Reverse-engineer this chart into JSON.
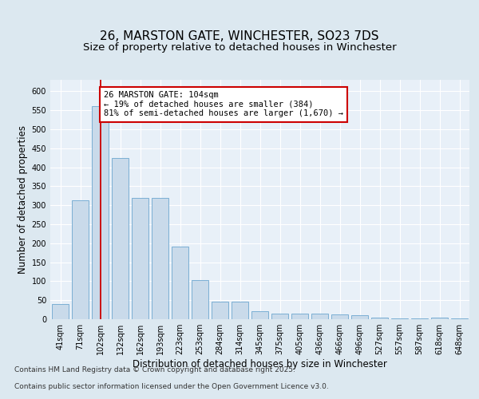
{
  "title_line1": "26, MARSTON GATE, WINCHESTER, SO23 7DS",
  "title_line2": "Size of property relative to detached houses in Winchester",
  "xlabel": "Distribution of detached houses by size in Winchester",
  "ylabel": "Number of detached properties",
  "categories": [
    "41sqm",
    "71sqm",
    "102sqm",
    "132sqm",
    "162sqm",
    "193sqm",
    "223sqm",
    "253sqm",
    "284sqm",
    "314sqm",
    "345sqm",
    "375sqm",
    "405sqm",
    "436sqm",
    "466sqm",
    "496sqm",
    "527sqm",
    "557sqm",
    "587sqm",
    "618sqm",
    "648sqm"
  ],
  "values": [
    40,
    312,
    560,
    425,
    320,
    320,
    192,
    103,
    47,
    47,
    20,
    15,
    15,
    15,
    12,
    10,
    5,
    3,
    3,
    5,
    3
  ],
  "bar_color": "#c9daea",
  "bar_edge_color": "#7bafd4",
  "red_line_index": 2,
  "annotation_text": "26 MARSTON GATE: 104sqm\n← 19% of detached houses are smaller (384)\n81% of semi-detached houses are larger (1,670) →",
  "annotation_box_color": "#ffffff",
  "annotation_box_edge": "#cc0000",
  "ylim": [
    0,
    630
  ],
  "yticks": [
    0,
    50,
    100,
    150,
    200,
    250,
    300,
    350,
    400,
    450,
    500,
    550,
    600
  ],
  "background_color": "#dce8f0",
  "plot_bg_color": "#e8f0f8",
  "footer_line1": "Contains HM Land Registry data © Crown copyright and database right 2025.",
  "footer_line2": "Contains public sector information licensed under the Open Government Licence v3.0.",
  "title_fontsize": 11,
  "subtitle_fontsize": 9.5,
  "axis_label_fontsize": 8.5,
  "tick_fontsize": 7,
  "annotation_fontsize": 7.5,
  "footer_fontsize": 6.5
}
